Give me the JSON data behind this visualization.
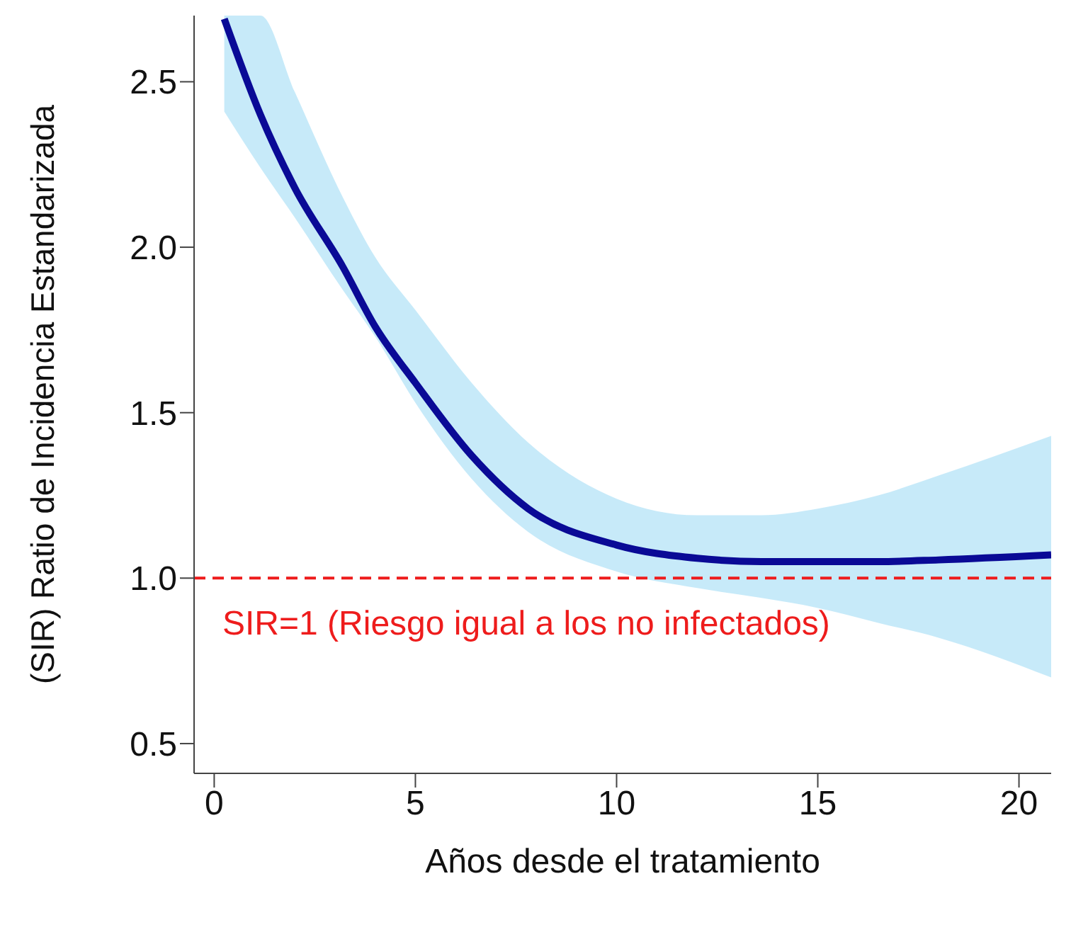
{
  "chart_data": {
    "type": "line",
    "xlabel": "Años desde el tratamiento",
    "ylabel": "(SIR) Ratio de Incidencia Estandarizada",
    "x": [
      0.25,
      1.15,
      2,
      3.2,
      4,
      5,
      6.4,
      7.8,
      10,
      12,
      13.6,
      15,
      16.5,
      18,
      20.8
    ],
    "series": [
      {
        "color": "#0a0a96",
        "values": [
          2.69,
          2.4,
          2.18,
          1.94,
          1.76,
          1.59,
          1.37,
          1.21,
          1.1,
          1.06,
          1.05,
          1.05,
          1.05,
          1.055,
          1.07
        ],
        "lower": [
          2.41,
          2.24,
          2.09,
          1.87,
          1.73,
          1.53,
          1.3,
          1.14,
          1.02,
          0.97,
          0.94,
          0.91,
          0.865,
          0.82,
          0.7
        ],
        "upper": [
          2.7,
          2.7,
          2.47,
          2.15,
          1.97,
          1.81,
          1.59,
          1.41,
          1.24,
          1.19,
          1.19,
          1.21,
          1.25,
          1.31,
          1.43
        ]
      }
    ],
    "xlim": [
      -0.5,
      20.8
    ],
    "xticks": [
      0,
      5,
      10,
      15,
      20
    ],
    "ylim": [
      0.41,
      2.7
    ],
    "yticks": [
      {
        "value": 0.5,
        "label": "0.5"
      },
      {
        "value": 1,
        "label": "1.0"
      },
      {
        "value": 1.5,
        "label": "1.5"
      },
      {
        "value": 2,
        "label": "2.0"
      },
      {
        "value": 2.5,
        "label": "2.5"
      }
    ],
    "ref_lines": [
      {
        "axis": "y",
        "value": 1,
        "label": "SIR=1 (Riesgo igual a los no infectados)",
        "color": "#ee1c1c",
        "line_style": "dashed"
      }
    ],
    "grid": false,
    "legend": false,
    "line_style": "solid",
    "marker": "none"
  }
}
